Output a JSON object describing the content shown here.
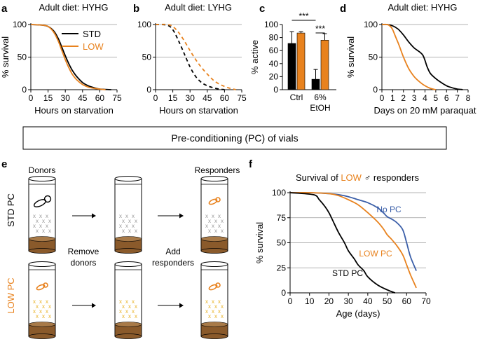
{
  "colors": {
    "std": "#000000",
    "low": "#e8821e",
    "nopc": "#3a5ea8",
    "grid": "#9a9a9a",
    "vial_base": "#8a5a2b",
    "donor_mark": "#9a9a9a",
    "low_mark": "#e8b020"
  },
  "panel_labels": {
    "a": "a",
    "b": "b",
    "c": "c",
    "d": "d",
    "e": "e",
    "f": "f"
  },
  "precond_box": {
    "text": "Pre-conditioning (PC) of vials"
  },
  "chart_data": [
    {
      "id": "a",
      "type": "line",
      "title": "Adult diet: HYHG",
      "xlabel": "Hours on starvation",
      "ylabel": "% survival",
      "xlim": [
        0,
        75
      ],
      "ylim": [
        0,
        100
      ],
      "xticks": [
        0,
        15,
        30,
        45,
        60,
        75
      ],
      "yticks": [
        0,
        50,
        100
      ],
      "grid": true,
      "legend": [
        "STD",
        "LOW"
      ],
      "series": [
        {
          "name": "STD",
          "color_key": "std",
          "dash": false,
          "x": [
            0,
            10,
            15,
            20,
            24,
            27,
            30,
            33,
            36,
            40,
            45,
            50,
            55,
            60,
            70
          ],
          "y": [
            100,
            99,
            97,
            90,
            78,
            65,
            52,
            40,
            30,
            20,
            11,
            6,
            3,
            1,
            0
          ]
        },
        {
          "name": "LOW",
          "color_key": "low",
          "dash": false,
          "x": [
            0,
            10,
            15,
            20,
            24,
            27,
            30,
            33,
            36,
            40,
            45,
            50,
            55,
            65
          ],
          "y": [
            100,
            99,
            97,
            88,
            74,
            60,
            46,
            34,
            24,
            15,
            8,
            4,
            2,
            0
          ]
        }
      ]
    },
    {
      "id": "b",
      "type": "line",
      "title": "Adult diet: LYHG",
      "xlabel": "Hours on starvation",
      "ylabel": "",
      "xlim": [
        0,
        75
      ],
      "ylim": [
        0,
        100
      ],
      "xticks": [
        0,
        15,
        30,
        45,
        60,
        75
      ],
      "yticks": [
        0,
        50,
        100
      ],
      "grid": true,
      "series": [
        {
          "name": "STD",
          "color_key": "std",
          "dash": true,
          "x": [
            0,
            10,
            15,
            20,
            25,
            30,
            35,
            40,
            45,
            50,
            55,
            60
          ],
          "y": [
            100,
            99,
            92,
            75,
            55,
            35,
            20,
            11,
            6,
            3,
            1,
            0
          ]
        },
        {
          "name": "LOW",
          "color_key": "low",
          "dash": true,
          "x": [
            0,
            10,
            15,
            20,
            25,
            30,
            35,
            40,
            45,
            50,
            55,
            60,
            65,
            70
          ],
          "y": [
            100,
            100,
            97,
            88,
            75,
            60,
            46,
            34,
            24,
            15,
            9,
            5,
            2,
            0
          ]
        }
      ]
    },
    {
      "id": "c",
      "type": "bar",
      "title": "",
      "ylabel": "% active",
      "ylim": [
        0,
        100
      ],
      "yticks": [
        0,
        20,
        40,
        60,
        80,
        100
      ],
      "categories": [
        "Ctrl",
        "6%\nEtOH"
      ],
      "category_lines": [
        [
          "Ctrl"
        ],
        [
          "6%",
          "EtOH"
        ]
      ],
      "series": [
        {
          "name": "STD",
          "color_key": "std",
          "values": [
            71,
            16
          ],
          "errors": [
            18,
            15
          ]
        },
        {
          "name": "LOW",
          "color_key": "low",
          "values": [
            87,
            76
          ],
          "errors": [
            2,
            10
          ]
        }
      ],
      "significance": [
        {
          "label": "***",
          "between": "Ctrl STD vs 6% EtOH STD"
        },
        {
          "label": "***",
          "between": "6% EtOH STD vs LOW"
        }
      ]
    },
    {
      "id": "d",
      "type": "line",
      "title": "Adult diet: HYHG",
      "xlabel": "Days on 20 mM paraquat",
      "ylabel": "% survival",
      "xlim": [
        0,
        8
      ],
      "ylim": [
        0,
        100
      ],
      "xticks": [
        0,
        1,
        2,
        3,
        4,
        5,
        6,
        7,
        8
      ],
      "yticks": [
        0,
        50,
        100
      ],
      "grid": true,
      "series": [
        {
          "name": "STD",
          "color_key": "std",
          "dash": false,
          "x": [
            0,
            0.5,
            1,
            1.5,
            2,
            2.5,
            3,
            3.5,
            3.8,
            4,
            4.2,
            4.5,
            5,
            5.5,
            6,
            6.5,
            7,
            7.5
          ],
          "y": [
            100,
            100,
            98,
            93,
            84,
            73,
            64,
            58,
            53,
            45,
            35,
            25,
            17,
            11,
            6,
            3,
            1,
            0
          ]
        },
        {
          "name": "LOW",
          "color_key": "low",
          "dash": false,
          "x": [
            0,
            0.5,
            0.8,
            1,
            1.3,
            1.6,
            2,
            2.5,
            3,
            3.5,
            4,
            4.5,
            5
          ],
          "y": [
            100,
            100,
            97,
            92,
            80,
            68,
            50,
            32,
            20,
            12,
            6,
            2,
            0
          ]
        }
      ]
    },
    {
      "id": "f",
      "type": "line",
      "title": "Survival of LOW ♂ responders",
      "title_parts": {
        "pre": "Survival of ",
        "low": "LOW",
        "post": " ♂ responders"
      },
      "xlabel": "Age (days)",
      "ylabel": "% survival",
      "xlim": [
        0,
        70
      ],
      "ylim": [
        0,
        100
      ],
      "xticks": [
        0,
        10,
        20,
        30,
        40,
        50,
        60,
        70
      ],
      "yticks": [
        0,
        25,
        50,
        75,
        100
      ],
      "grid": true,
      "series": [
        {
          "name": "No PC",
          "label": "No PC",
          "color_key": "nopc",
          "x": [
            0,
            10,
            20,
            25,
            30,
            35,
            40,
            45,
            48,
            50,
            52,
            55,
            58,
            60,
            62,
            65
          ],
          "y": [
            100,
            100,
            99,
            98,
            96,
            93,
            90,
            85,
            80,
            76,
            74,
            70,
            63,
            50,
            36,
            22
          ]
        },
        {
          "name": "LOW PC",
          "label": "LOW PC",
          "color_key": "low",
          "x": [
            0,
            10,
            20,
            25,
            30,
            35,
            40,
            45,
            48,
            50,
            52,
            55,
            58,
            60,
            62,
            65
          ],
          "y": [
            100,
            100,
            99,
            97,
            93,
            88,
            80,
            71,
            64,
            58,
            54,
            47,
            38,
            28,
            18,
            5
          ]
        },
        {
          "name": "STD PC",
          "label": "STD PC",
          "color_key": "std",
          "x": [
            0,
            12,
            15,
            18,
            20,
            22,
            25,
            28,
            30,
            33,
            35,
            38,
            40,
            45,
            50,
            54
          ],
          "y": [
            100,
            98,
            93,
            86,
            80,
            72,
            60,
            50,
            42,
            34,
            28,
            22,
            16,
            8,
            3,
            0
          ]
        }
      ]
    }
  ],
  "diagram_e": {
    "labels": {
      "donors": "Donors",
      "responders": "Responders",
      "remove_donors": [
        "Remove",
        "donors"
      ],
      "add_responders": [
        "Add",
        "responders"
      ],
      "row_std": "STD PC",
      "row_low": "LOW PC"
    }
  }
}
